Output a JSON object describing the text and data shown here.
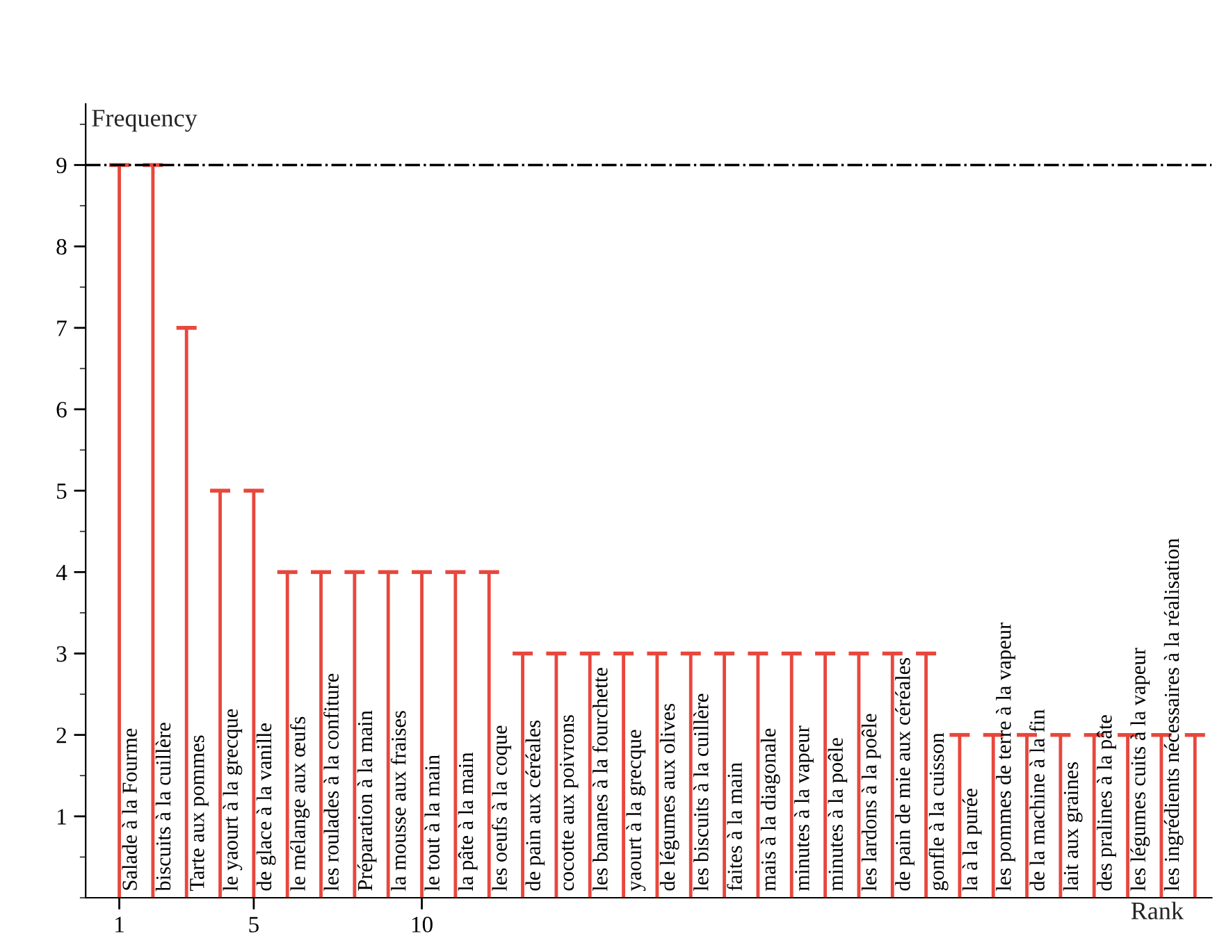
{
  "chart_data": {
    "type": "bar",
    "xlabel": "Rank",
    "ylabel": "Frequency",
    "color": "#e8473c",
    "x": [
      1,
      2,
      3,
      4,
      5,
      6,
      7,
      8,
      9,
      10,
      11,
      12,
      13,
      14,
      15,
      16,
      17,
      18,
      19,
      20,
      21,
      22,
      23,
      24,
      25,
      26,
      27,
      28,
      29,
      30,
      31,
      32,
      33
    ],
    "values": [
      9,
      9,
      7,
      5,
      5,
      4,
      4,
      4,
      4,
      4,
      4,
      4,
      3,
      3,
      3,
      3,
      3,
      3,
      3,
      3,
      3,
      3,
      3,
      3,
      3,
      2,
      2,
      2,
      2,
      2,
      2,
      2,
      2
    ],
    "value_labels": [
      "Salade à la Fourme",
      "biscuits à la cuillère",
      "Tarte aux pommes",
      "le yaourt à la grecque",
      "de glace à la vanille",
      "le mélange aux œufs",
      "les roulades à la confiture",
      "Préparation à la main",
      "la mousse aux fraises",
      "le tout à la main",
      "la pâte à la main",
      "les oeufs à la coque",
      "de pain aux céréales",
      "cocotte aux poivrons",
      "les bananes à la fourchette",
      "yaourt à la grecque",
      "de légumes aux olives",
      "les biscuits à la cuillère",
      "faites à la main",
      "mais à la diagonale",
      "minutes à la vapeur",
      "minutes à la poêle",
      "les lardons à la poêle",
      "de pain de mie aux céréales",
      "gonfle à la cuisson",
      "la à la purée",
      "les pommes de terre à la vapeur",
      "de la machine à la fin",
      "lait aux graines",
      "des pralines à la pâte",
      "les légumes cuits à la vapeur",
      "les ingrédients nécessaires à la réalisation",
      null
    ],
    "xlim": [
      0,
      33.5
    ],
    "ylim": [
      0,
      9.75
    ],
    "xticks": [
      1,
      5,
      10
    ],
    "yticks": [
      1,
      2,
      3,
      4,
      5,
      6,
      7,
      8,
      9
    ],
    "ref_lines": [
      {
        "axis": "y",
        "value": 9,
        "line_style": "dashdot",
        "color": "#000000"
      }
    ],
    "grid": false,
    "legend": false
  }
}
